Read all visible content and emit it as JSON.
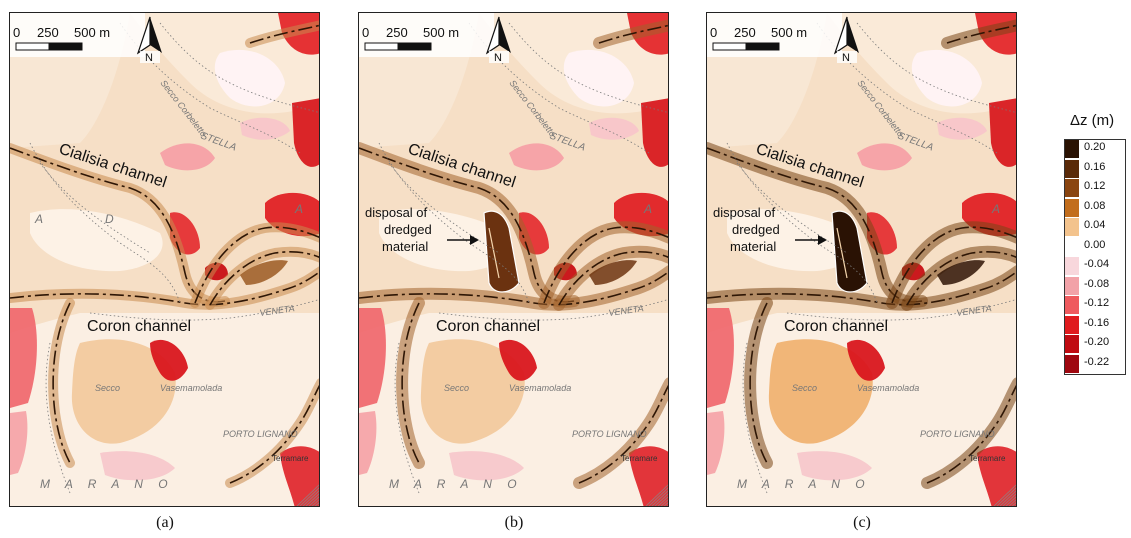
{
  "panels": [
    {
      "id": "a",
      "caption": "(a)",
      "scale_labels": [
        "0",
        "250",
        "500 m"
      ],
      "north": "N",
      "channels": {
        "upper": "Cialisia channel",
        "lower": "Coron channel"
      },
      "place_labels": [
        "Secco Corbeletto",
        "STELLA",
        "A",
        "D",
        "A",
        "VENETA",
        "Secco",
        "Vasemamolada",
        "PORTO LIGNANO",
        "Terramare",
        "M A R A N O"
      ],
      "annotation": null,
      "intensity": 1
    },
    {
      "id": "b",
      "caption": "(b)",
      "scale_labels": [
        "0",
        "250",
        "500 m"
      ],
      "north": "N",
      "channels": {
        "upper": "Cialisia channel",
        "lower": "Coron channel"
      },
      "place_labels": [
        "Secco Corbeletto",
        "STELLA",
        "A",
        "VENETA",
        "Secco",
        "Vasemamolada",
        "PORTO LIGNANO",
        "Terramare",
        "M A R A N O"
      ],
      "annotation": {
        "lines": [
          "disposal of",
          "dredged",
          "material"
        ]
      },
      "intensity": 2
    },
    {
      "id": "c",
      "caption": "(c)",
      "scale_labels": [
        "0",
        "250",
        "500 m"
      ],
      "north": "N",
      "channels": {
        "upper": "Cialisia channel",
        "lower": "Coron channel"
      },
      "place_labels": [
        "Secco Corbeletto",
        "STELLA",
        "A",
        "VENETA",
        "Secco",
        "Vasemamolada",
        "PORTO LIGNANO",
        "Terramare",
        "M A R A N O"
      ],
      "annotation": {
        "lines": [
          "disposal of",
          "dredged",
          "material"
        ]
      },
      "intensity": 3
    }
  ],
  "legend": {
    "title": "Δz (m)",
    "items": [
      {
        "label": "0.20",
        "color": "#2b1303"
      },
      {
        "label": "0.16",
        "color": "#5a2a08"
      },
      {
        "label": "0.12",
        "color": "#8a4510"
      },
      {
        "label": "0.08",
        "color": "#c26d1c"
      },
      {
        "label": "0.04",
        "color": "#f3c38d"
      },
      {
        "label": "0.00",
        "color": "#ffffff"
      },
      {
        "label": "-0.04",
        "color": "#f8d7dc"
      },
      {
        "label": "-0.08",
        "color": "#f2a2a8"
      },
      {
        "label": "-0.12",
        "color": "#ef5a5e"
      },
      {
        "label": "-0.16",
        "color": "#e01b1e"
      },
      {
        "label": "-0.20",
        "color": "#c00b12"
      },
      {
        "label": "-0.22",
        "color": "#9f0710"
      }
    ]
  }
}
